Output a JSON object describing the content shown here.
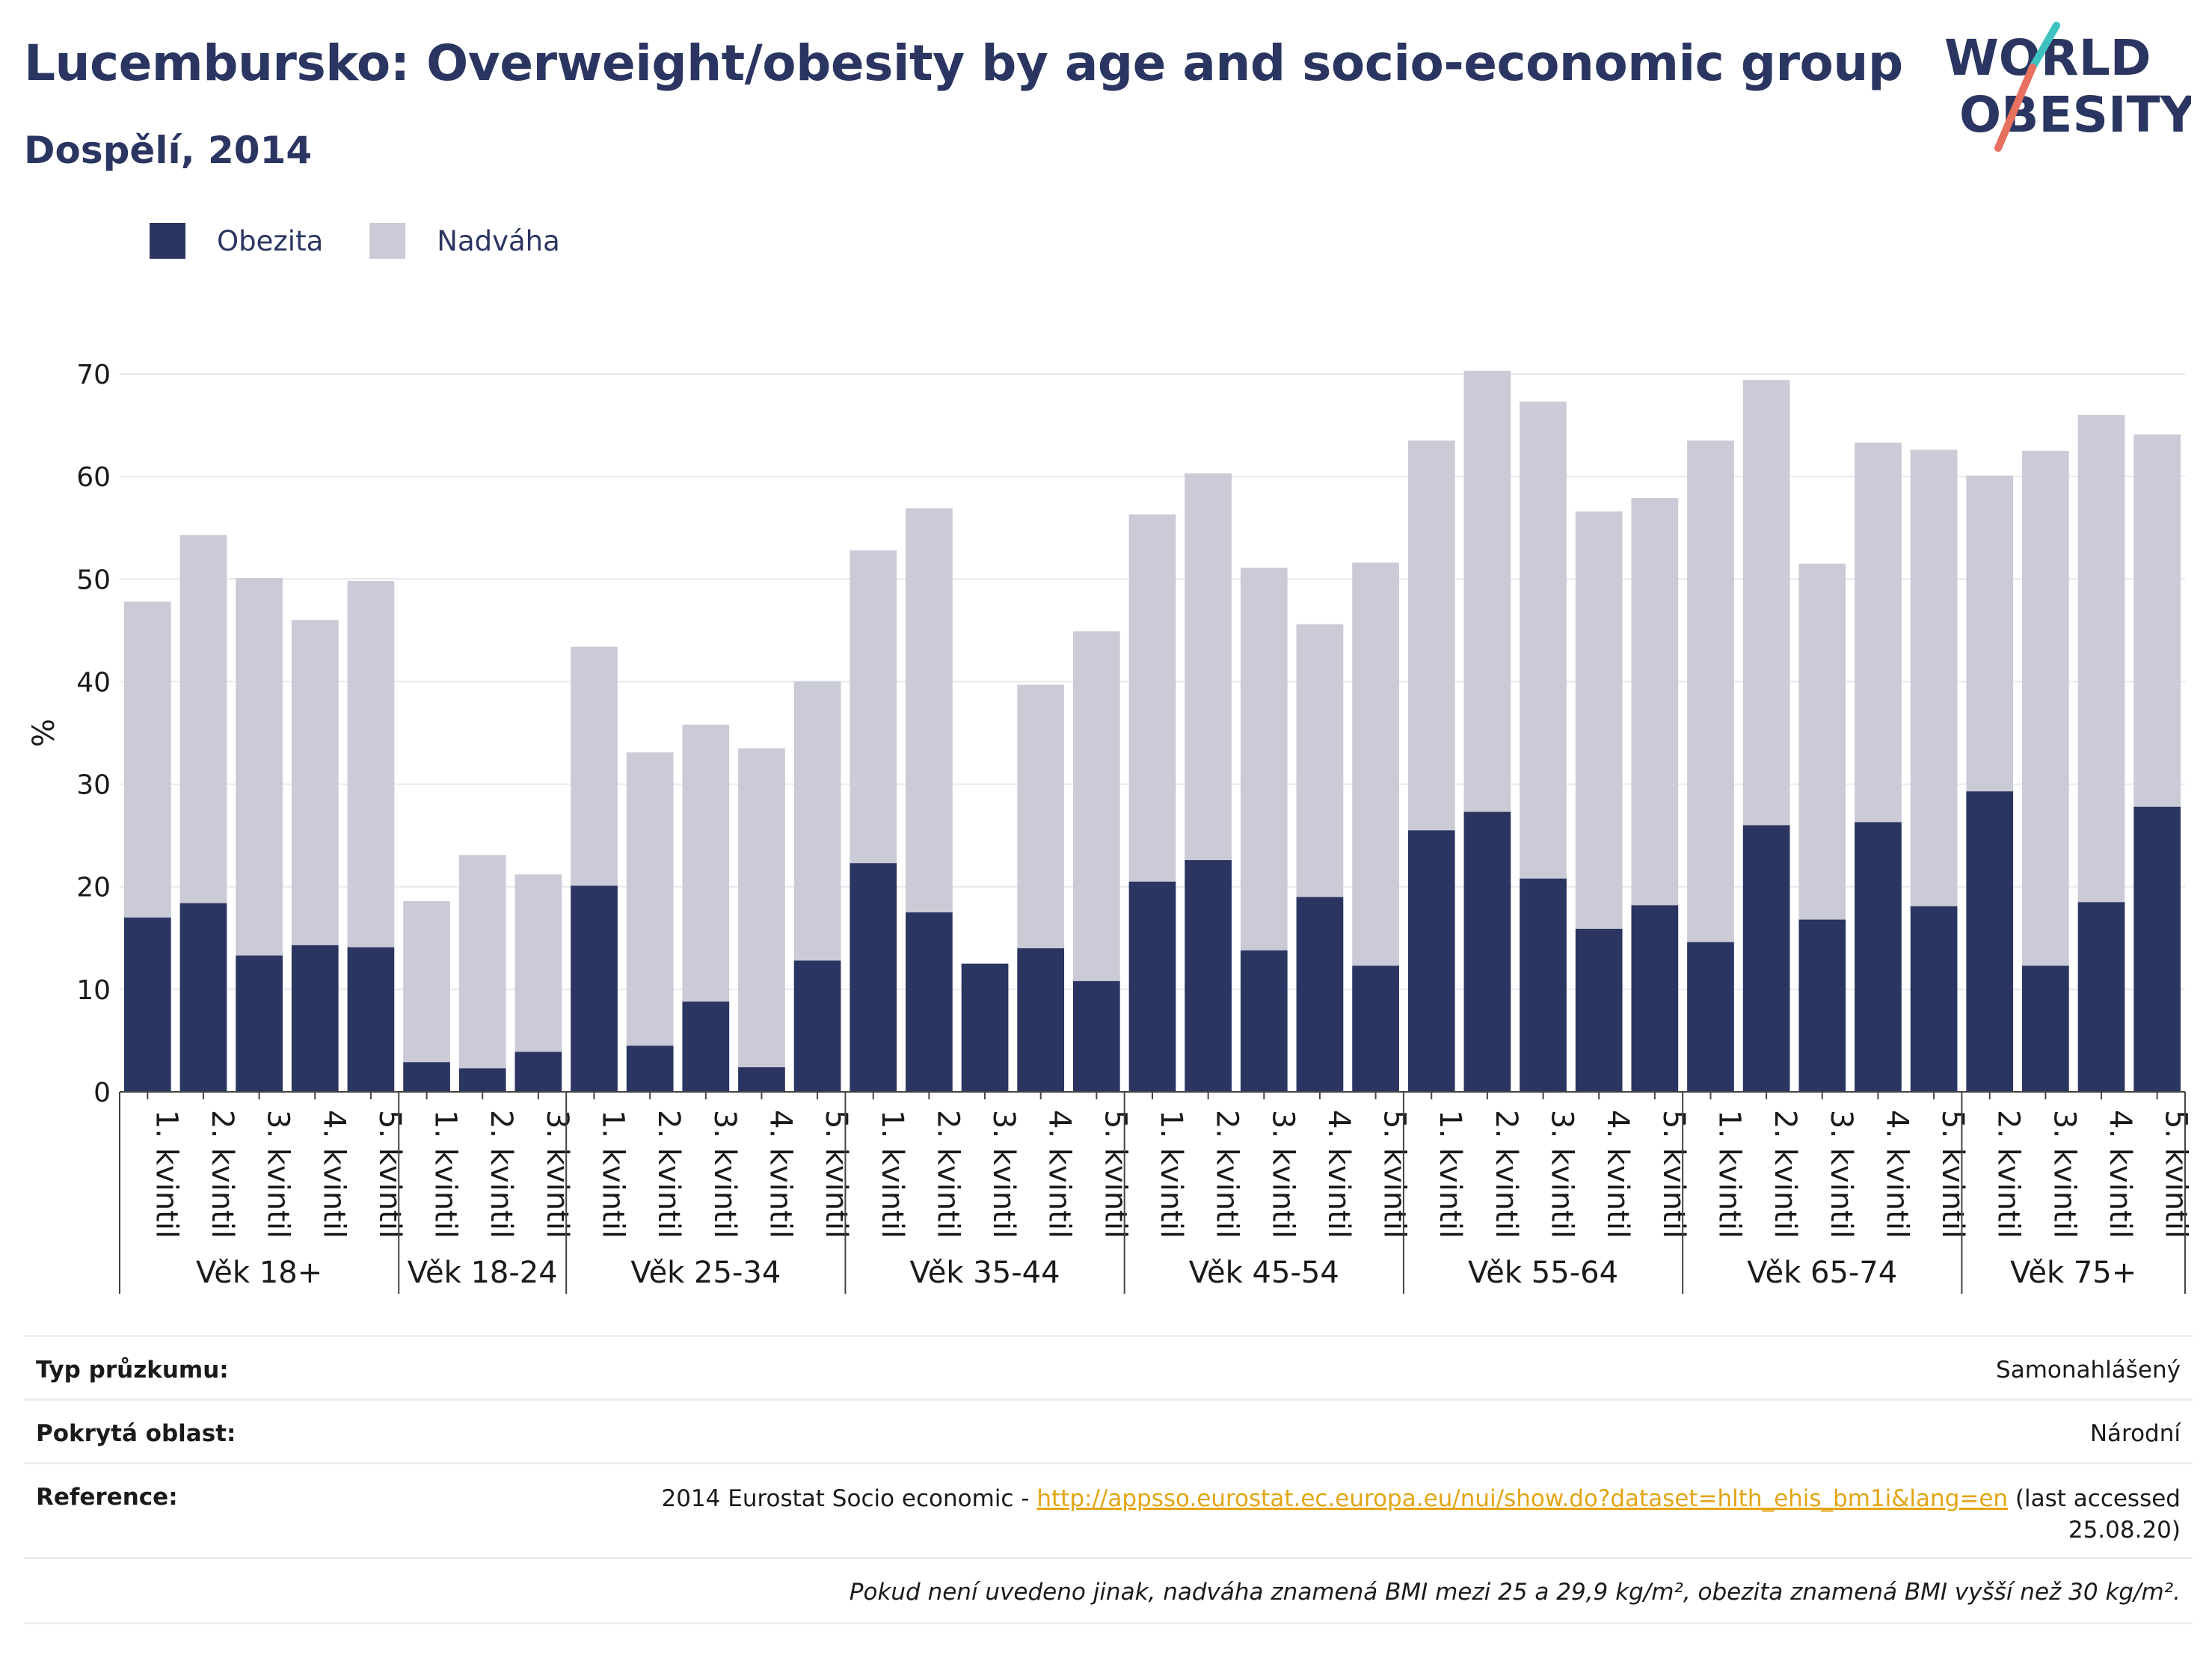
{
  "title": "Lucembursko: Overweight/obesity by age and socio-economic group",
  "subtitle": "Dospělí, 2014",
  "logo": {
    "line1": "WORLD",
    "line2": "OBESITY"
  },
  "colors": {
    "obesity": "#2b3561",
    "overweight": "#cacbd7",
    "grid": "#e8e9ee",
    "text": "#2b3561",
    "link": "#e3a513"
  },
  "legend": [
    {
      "label": "Obezita",
      "color": "#2b3561"
    },
    {
      "label": "Nadváha",
      "color": "#cacbd7"
    }
  ],
  "chart_data": {
    "type": "bar",
    "stacked": true,
    "ylabel": "%",
    "ylim": [
      0,
      70
    ],
    "yticks": [
      0,
      10,
      20,
      30,
      40,
      50,
      60,
      70
    ],
    "grid": true,
    "legend_position": "top-left",
    "groups": [
      {
        "label": "Věk 18+",
        "categories": [
          "1. kvintil",
          "2. kvintil",
          "3. kvintil",
          "4. kvintil",
          "5. kvintil"
        ]
      },
      {
        "label": "Věk 18-24",
        "categories": [
          "1. kvintil",
          "2. kvintil",
          "3. kvintil"
        ]
      },
      {
        "label": "Věk 25-34",
        "categories": [
          "1. kvintil",
          "2. kvintil",
          "3. kvintil",
          "4. kvintil",
          "5. kvintil"
        ]
      },
      {
        "label": "Věk 35-44",
        "categories": [
          "1. kvintil",
          "2. kvintil",
          "3. kvintil",
          "4. kvintil",
          "5. kvintil"
        ]
      },
      {
        "label": "Věk 45-54",
        "categories": [
          "1. kvintil",
          "2. kvintil",
          "3. kvintil",
          "4. kvintil",
          "5. kvintil"
        ]
      },
      {
        "label": "Věk 55-64",
        "categories": [
          "1. kvintil",
          "2. kvintil",
          "3. kvintil",
          "4. kvintil",
          "5. kvintil"
        ]
      },
      {
        "label": "Věk 65-74",
        "categories": [
          "1. kvintil",
          "2. kvintil",
          "3. kvintil",
          "4. kvintil",
          "5. kvintil"
        ]
      },
      {
        "label": "Věk 75+",
        "categories": [
          "2. kvintil",
          "3. kvintil",
          "4. kvintil",
          "5. kvintil"
        ]
      }
    ],
    "series": [
      {
        "name": "Obezita",
        "values": [
          17.0,
          18.4,
          13.3,
          14.3,
          14.1,
          2.9,
          2.3,
          3.9,
          20.1,
          4.5,
          8.8,
          2.4,
          12.8,
          22.3,
          17.5,
          12.5,
          14.0,
          10.8,
          20.5,
          22.6,
          13.8,
          19.0,
          12.3,
          25.5,
          27.3,
          20.8,
          15.9,
          18.2,
          14.6,
          26.0,
          16.8,
          26.3,
          18.1,
          29.3,
          12.3,
          18.5,
          27.8
        ]
      },
      {
        "name": "Nadváha",
        "values": [
          30.8,
          35.9,
          36.8,
          31.7,
          35.7,
          15.7,
          20.8,
          17.3,
          23.3,
          28.6,
          27.0,
          31.1,
          27.2,
          30.5,
          39.4,
          0.0,
          25.7,
          34.1,
          35.8,
          37.7,
          37.3,
          26.6,
          39.3,
          38.0,
          43.0,
          46.5,
          40.7,
          39.7,
          48.9,
          43.4,
          34.7,
          37.0,
          44.5,
          30.8,
          50.2,
          47.5,
          36.3
        ]
      }
    ]
  },
  "info": {
    "survey_label": "Typ průzkumu:",
    "survey_value": "Samonahlášený",
    "area_label": "Pokrytá oblast:",
    "area_value": "Národní",
    "ref_label": "Reference:",
    "ref_prefix": "2014 Eurostat Socio economic - ",
    "ref_link": "http://appsso.eurostat.ec.europa.eu/nui/show.do?dataset=hlth_ehis_bm1i&lang=en",
    "ref_suffix": " (last accessed 25.08.20)",
    "note": "Pokud není uvedeno jinak, nadváha znamená BMI mezi 25 a 29,9 kg/m², obezita znamená BMI vyšší než 30 kg/m²."
  }
}
